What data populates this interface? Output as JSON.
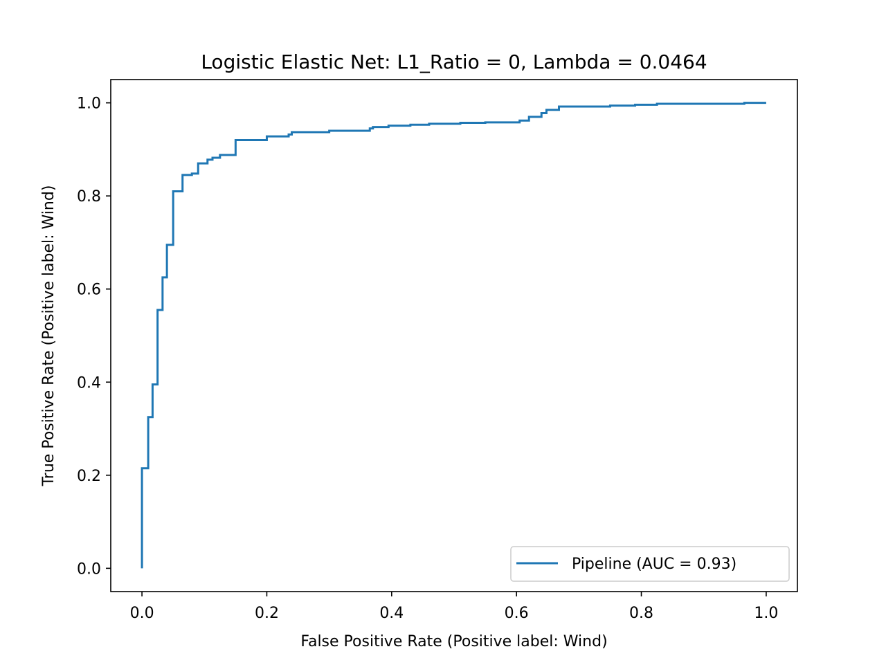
{
  "chart_data": {
    "type": "line",
    "title": "Logistic Elastic Net: L1_Ratio = 0, Lambda = 0.0464",
    "xlabel": "False Positive Rate (Positive label: Wind)",
    "ylabel": "True Positive Rate (Positive label: Wind)",
    "xlim": [
      -0.05,
      1.05
    ],
    "ylim": [
      -0.05,
      1.05
    ],
    "xticks": [
      0.0,
      0.2,
      0.4,
      0.6,
      0.8,
      1.0
    ],
    "xtick_labels": [
      "0.0",
      "0.2",
      "0.4",
      "0.6",
      "0.8",
      "1.0"
    ],
    "yticks": [
      0.0,
      0.2,
      0.4,
      0.6,
      0.8,
      1.0
    ],
    "ytick_labels": [
      "0.0",
      "0.2",
      "0.4",
      "0.6",
      "0.8",
      "1.0"
    ],
    "grid": false,
    "legend_position": "lower-right",
    "colors": {
      "series": "#1f77b4",
      "axes": "#000000",
      "background": "#ffffff"
    },
    "series": [
      {
        "name": "Pipeline (AUC = 0.93)",
        "step": true,
        "x": [
          0.0,
          0.0,
          0.01,
          0.01,
          0.017,
          0.017,
          0.025,
          0.025,
          0.033,
          0.033,
          0.04,
          0.04,
          0.05,
          0.05,
          0.065,
          0.065,
          0.08,
          0.08,
          0.09,
          0.09,
          0.105,
          0.105,
          0.113,
          0.113,
          0.125,
          0.125,
          0.15,
          0.15,
          0.2,
          0.2,
          0.235,
          0.235,
          0.24,
          0.24,
          0.3,
          0.3,
          0.365,
          0.365,
          0.37,
          0.37,
          0.395,
          0.395,
          0.43,
          0.43,
          0.46,
          0.46,
          0.51,
          0.51,
          0.55,
          0.55,
          0.605,
          0.605,
          0.62,
          0.62,
          0.64,
          0.64,
          0.648,
          0.648,
          0.668,
          0.668,
          0.75,
          0.75,
          0.79,
          0.79,
          0.825,
          0.825,
          0.965,
          0.965,
          1.0
        ],
        "y": [
          0.0,
          0.215,
          0.215,
          0.325,
          0.325,
          0.395,
          0.395,
          0.555,
          0.555,
          0.625,
          0.625,
          0.695,
          0.695,
          0.81,
          0.81,
          0.845,
          0.845,
          0.848,
          0.848,
          0.87,
          0.87,
          0.878,
          0.878,
          0.882,
          0.882,
          0.888,
          0.888,
          0.92,
          0.92,
          0.928,
          0.928,
          0.932,
          0.932,
          0.937,
          0.937,
          0.94,
          0.94,
          0.945,
          0.945,
          0.948,
          0.948,
          0.951,
          0.951,
          0.953,
          0.953,
          0.955,
          0.955,
          0.957,
          0.957,
          0.958,
          0.958,
          0.962,
          0.962,
          0.97,
          0.97,
          0.978,
          0.978,
          0.985,
          0.985,
          0.992,
          0.992,
          0.994,
          0.994,
          0.996,
          0.996,
          0.998,
          0.998,
          1.0,
          1.0
        ]
      }
    ]
  }
}
